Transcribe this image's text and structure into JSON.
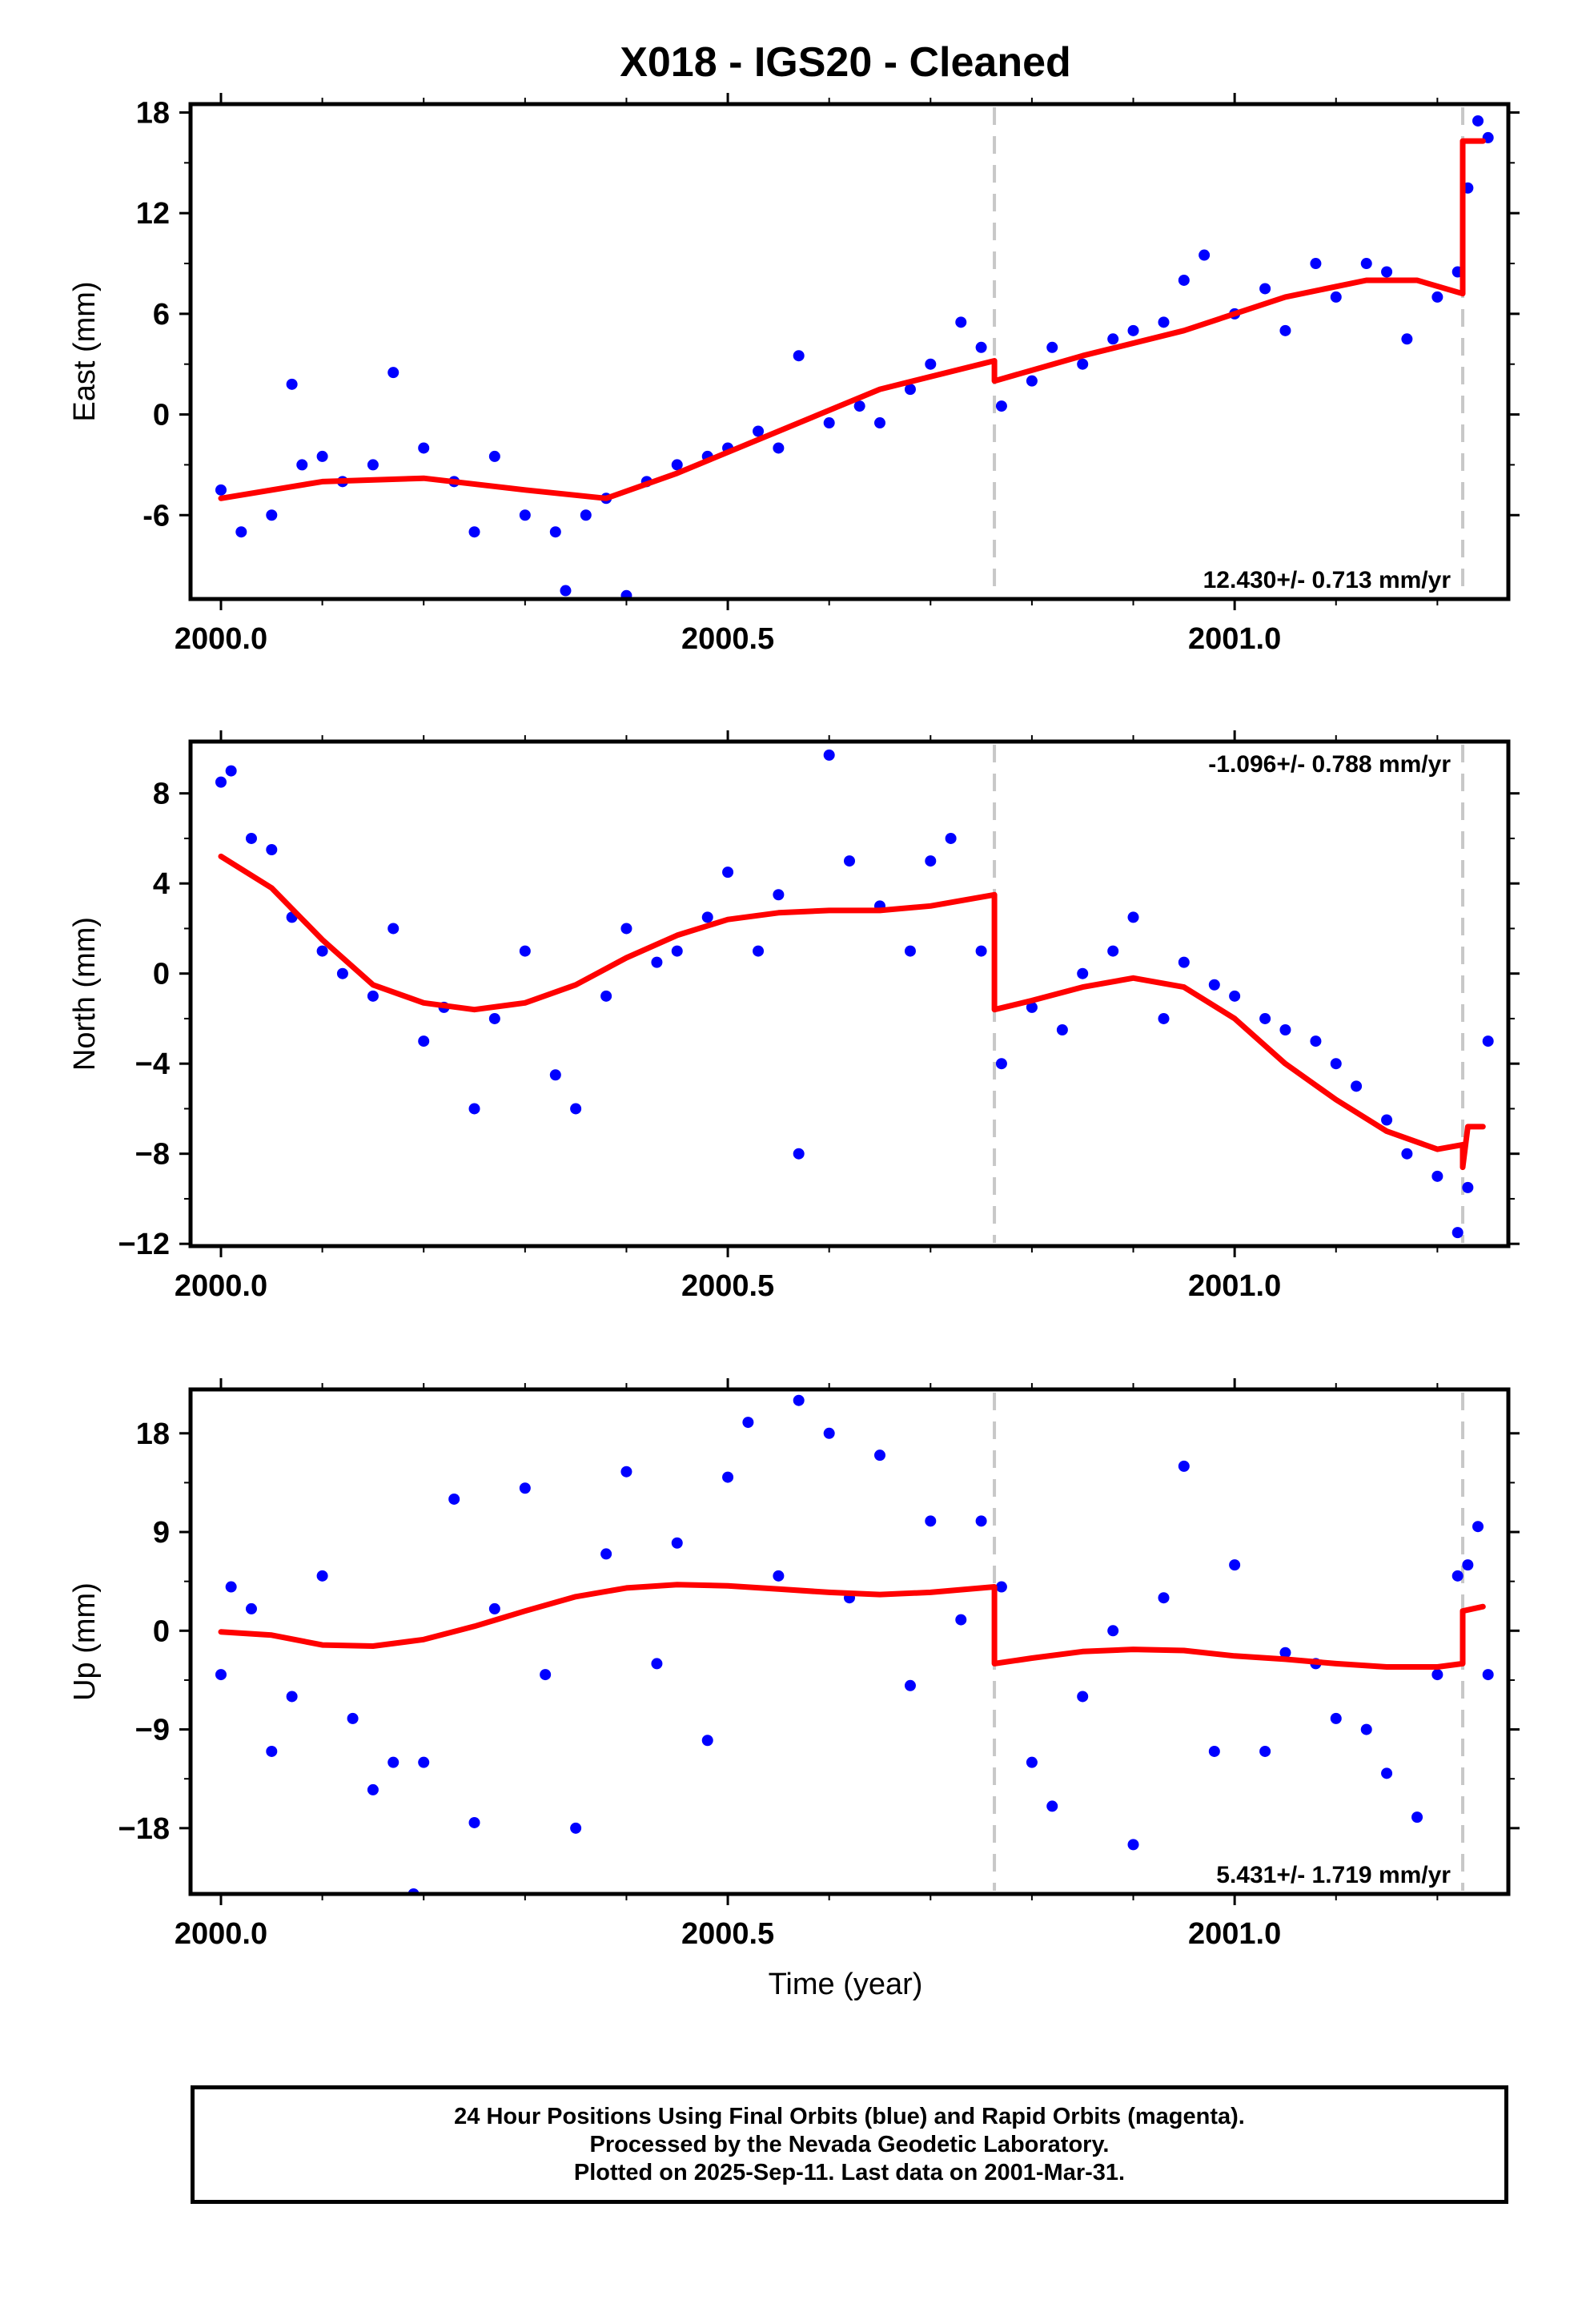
{
  "title": "X018  - IGS20 - Cleaned",
  "xlabel": "Time (year)",
  "caption": {
    "line1": "24 Hour Positions Using Final Orbits (blue) and Rapid Orbits (magenta).",
    "line2": "Processed by the Nevada Geodetic Laboratory.",
    "line3": "Plotted on 2025-Sep-11. Last data on 2001-Mar-31."
  },
  "colors": {
    "final_orbits": "#0000ff",
    "model_fit": "#ff0000",
    "step_lines": "#c8c8c8",
    "frame": "#000000"
  },
  "chart_data": [
    {
      "type": "scatter",
      "ylabel": "East (mm)",
      "xlim": [
        1999.97,
        2001.27
      ],
      "ylim": [
        -11,
        18.5
      ],
      "yticks": [
        -6,
        0,
        6,
        12,
        18
      ],
      "ytick_labels": [
        "-6",
        "0",
        "6",
        "12",
        "18"
      ],
      "xticks": [
        2000.0,
        2000.5,
        2001.0
      ],
      "xtick_labels": [
        "2000.0",
        "2000.5",
        "2001.0"
      ],
      "vlines": [
        2000.763,
        2001.225
      ],
      "rate_label": "12.430+/- 0.713 mm/yr",
      "rate_position": "bottom-right",
      "series": [
        {
          "kind": "points",
          "x": [
            2000.0,
            2000.02,
            2000.05,
            2000.07,
            2000.08,
            2000.1,
            2000.12,
            2000.15,
            2000.17,
            2000.2,
            2000.23,
            2000.25,
            2000.27,
            2000.3,
            2000.33,
            2000.34,
            2000.36,
            2000.38,
            2000.4,
            2000.42,
            2000.45,
            2000.48,
            2000.5,
            2000.53,
            2000.55,
            2000.57,
            2000.6,
            2000.63,
            2000.65,
            2000.68,
            2000.7,
            2000.73,
            2000.75,
            2000.77,
            2000.8,
            2000.82,
            2000.85,
            2000.88,
            2000.9,
            2000.93,
            2000.95,
            2000.97,
            2001.0,
            2001.03,
            2001.05,
            2001.08,
            2001.1,
            2001.13,
            2001.15,
            2001.17,
            2001.2,
            2001.22,
            2001.23,
            2001.24,
            2001.25
          ],
          "y": [
            -4.5,
            -7.0,
            -6.0,
            1.8,
            -3.0,
            -2.5,
            -4.0,
            -3.0,
            2.5,
            -2.0,
            -4.0,
            -7.0,
            -2.5,
            -6.0,
            -7.0,
            -10.5,
            -6.0,
            -5.0,
            -10.8,
            -4.0,
            -3.0,
            -2.5,
            -2.0,
            -1.0,
            -2.0,
            3.5,
            -0.5,
            0.5,
            -0.5,
            1.5,
            3.0,
            5.5,
            4.0,
            0.5,
            2.0,
            4.0,
            3.0,
            4.5,
            5.0,
            5.5,
            8.0,
            9.5,
            6.0,
            7.5,
            5.0,
            9.0,
            7.0,
            9.0,
            8.5,
            4.5,
            7.0,
            8.5,
            13.5,
            17.5,
            16.5
          ]
        },
        {
          "kind": "line",
          "x": [
            2000.0,
            2000.1,
            2000.2,
            2000.3,
            2000.38,
            2000.45,
            2000.55,
            2000.65,
            2000.763,
            2000.763,
            2000.85,
            2000.95,
            2001.05,
            2001.13,
            2001.18,
            2001.225,
            2001.225,
            2001.245
          ],
          "y": [
            -5.0,
            -4.0,
            -3.8,
            -4.5,
            -5.0,
            -3.5,
            -1.0,
            1.5,
            3.2,
            2.0,
            3.5,
            5.0,
            7.0,
            8.0,
            8.0,
            7.2,
            16.3,
            16.3
          ]
        }
      ]
    },
    {
      "type": "scatter",
      "ylabel": "North (mm)",
      "xlim": [
        1999.97,
        2001.27
      ],
      "ylim": [
        -12.1,
        10.3
      ],
      "yticks": [
        -12,
        -8,
        -4,
        0,
        4,
        8
      ],
      "ytick_labels": [
        "−12",
        "−8",
        "−4",
        "0",
        "4",
        "8"
      ],
      "xticks": [
        2000.0,
        2000.5,
        2001.0
      ],
      "xtick_labels": [
        "2000.0",
        "2000.5",
        "2001.0"
      ],
      "vlines": [
        2000.763,
        2001.225
      ],
      "rate_label": "-1.096+/- 0.788 mm/yr",
      "rate_position": "top-right",
      "series": [
        {
          "kind": "points",
          "x": [
            2000.0,
            2000.01,
            2000.03,
            2000.05,
            2000.07,
            2000.1,
            2000.12,
            2000.15,
            2000.17,
            2000.2,
            2000.22,
            2000.25,
            2000.27,
            2000.3,
            2000.33,
            2000.35,
            2000.38,
            2000.4,
            2000.43,
            2000.45,
            2000.48,
            2000.5,
            2000.53,
            2000.55,
            2000.57,
            2000.6,
            2000.62,
            2000.65,
            2000.68,
            2000.7,
            2000.72,
            2000.75,
            2000.77,
            2000.8,
            2000.83,
            2000.85,
            2000.88,
            2000.9,
            2000.93,
            2000.95,
            2000.98,
            2001.0,
            2001.03,
            2001.05,
            2001.08,
            2001.1,
            2001.12,
            2001.15,
            2001.17,
            2001.2,
            2001.22,
            2001.23,
            2001.25
          ],
          "y": [
            8.5,
            9.0,
            6.0,
            5.5,
            2.5,
            1.0,
            0.0,
            -1.0,
            2.0,
            -3.0,
            -1.5,
            -6.0,
            -2.0,
            1.0,
            -4.5,
            -6.0,
            -1.0,
            2.0,
            0.5,
            1.0,
            2.5,
            4.5,
            1.0,
            3.5,
            -8.0,
            9.7,
            5.0,
            3.0,
            1.0,
            5.0,
            6.0,
            1.0,
            -4.0,
            -1.5,
            -2.5,
            0.0,
            1.0,
            2.5,
            -2.0,
            0.5,
            -0.5,
            -1.0,
            -2.0,
            -2.5,
            -3.0,
            -4.0,
            -5.0,
            -6.5,
            -8.0,
            -9.0,
            -11.5,
            -9.5,
            -3.0
          ]
        },
        {
          "kind": "line",
          "x": [
            2000.0,
            2000.05,
            2000.1,
            2000.15,
            2000.2,
            2000.25,
            2000.3,
            2000.35,
            2000.4,
            2000.45,
            2000.5,
            2000.55,
            2000.6,
            2000.65,
            2000.7,
            2000.763,
            2000.763,
            2000.8,
            2000.85,
            2000.9,
            2000.95,
            2001.0,
            2001.05,
            2001.1,
            2001.15,
            2001.2,
            2001.225,
            2001.225,
            2001.23,
            2001.245
          ],
          "y": [
            5.2,
            3.8,
            1.5,
            -0.5,
            -1.3,
            -1.6,
            -1.3,
            -0.5,
            0.7,
            1.7,
            2.4,
            2.7,
            2.8,
            2.8,
            3.0,
            3.5,
            -1.6,
            -1.2,
            -0.6,
            -0.2,
            -0.6,
            -2.0,
            -4.0,
            -5.6,
            -7.0,
            -7.8,
            -7.6,
            -8.6,
            -6.8,
            -6.8
          ]
        }
      ]
    },
    {
      "type": "scatter",
      "ylabel": "Up (mm)",
      "xlim": [
        1999.97,
        2001.27
      ],
      "ylim": [
        -24,
        22
      ],
      "yticks": [
        -18,
        -9,
        0,
        9,
        18
      ],
      "ytick_labels": [
        "−18",
        "−9",
        "0",
        "9",
        "18"
      ],
      "xticks": [
        2000.0,
        2000.5,
        2001.0
      ],
      "xtick_labels": [
        "2000.0",
        "2000.5",
        "2001.0"
      ],
      "vlines": [
        2000.763,
        2001.225
      ],
      "rate_label": "5.431+/- 1.719 mm/yr",
      "rate_position": "bottom-right",
      "series": [
        {
          "kind": "points",
          "x": [
            2000.0,
            2000.01,
            2000.03,
            2000.05,
            2000.07,
            2000.1,
            2000.13,
            2000.15,
            2000.17,
            2000.19,
            2000.2,
            2000.23,
            2000.25,
            2000.27,
            2000.3,
            2000.32,
            2000.35,
            2000.38,
            2000.4,
            2000.43,
            2000.45,
            2000.48,
            2000.5,
            2000.52,
            2000.55,
            2000.57,
            2000.6,
            2000.62,
            2000.65,
            2000.68,
            2000.7,
            2000.73,
            2000.75,
            2000.77,
            2000.8,
            2000.82,
            2000.85,
            2000.88,
            2000.9,
            2000.93,
            2000.95,
            2000.98,
            2001.0,
            2001.03,
            2001.05,
            2001.08,
            2001.1,
            2001.13,
            2001.15,
            2001.18,
            2001.2,
            2001.22,
            2001.23,
            2001.24,
            2001.25
          ],
          "y": [
            -4.0,
            4.0,
            2.0,
            -11.0,
            -6.0,
            5.0,
            -8.0,
            -14.5,
            -12.0,
            -24.0,
            -12.0,
            12.0,
            -17.5,
            2.0,
            13.0,
            -4.0,
            -18.0,
            7.0,
            14.5,
            -3.0,
            8.0,
            -10.0,
            14.0,
            19.0,
            5.0,
            21.0,
            18.0,
            3.0,
            16.0,
            -5.0,
            10.0,
            1.0,
            10.0,
            4.0,
            -12.0,
            -16.0,
            -6.0,
            0.0,
            -19.5,
            3.0,
            15.0,
            -11.0,
            6.0,
            -11.0,
            -2.0,
            -3.0,
            -8.0,
            -9.0,
            -13.0,
            -17.0,
            -4.0,
            5.0,
            6.0,
            9.5,
            -4.0
          ]
        },
        {
          "kind": "line",
          "x": [
            2000.0,
            2000.05,
            2000.1,
            2000.15,
            2000.2,
            2000.25,
            2000.3,
            2000.35,
            2000.4,
            2000.45,
            2000.5,
            2000.55,
            2000.6,
            2000.65,
            2000.7,
            2000.763,
            2000.763,
            2000.8,
            2000.85,
            2000.9,
            2000.95,
            2001.0,
            2001.05,
            2001.1,
            2001.15,
            2001.2,
            2001.225,
            2001.225,
            2001.245
          ],
          "y": [
            -0.1,
            -0.4,
            -1.3,
            -1.4,
            -0.8,
            0.4,
            1.8,
            3.1,
            3.9,
            4.2,
            4.1,
            3.8,
            3.5,
            3.3,
            3.5,
            4.0,
            -3.0,
            -2.5,
            -1.9,
            -1.7,
            -1.8,
            -2.3,
            -2.6,
            -3.0,
            -3.3,
            -3.3,
            -3.0,
            1.8,
            2.2
          ]
        }
      ]
    }
  ]
}
